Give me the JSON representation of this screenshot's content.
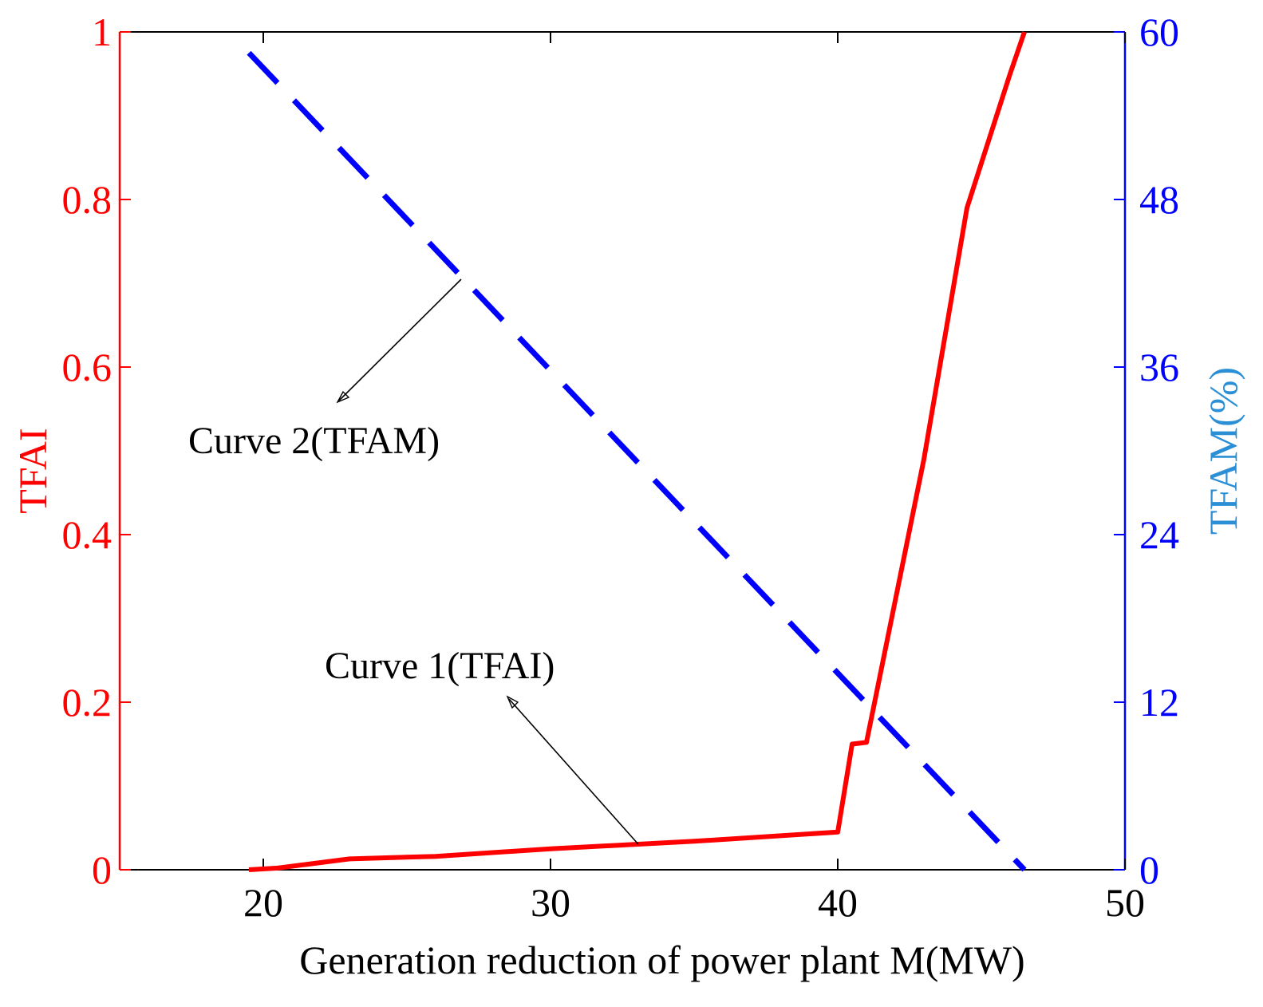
{
  "chart_data": {
    "type": "line",
    "title": "",
    "xlabel": "Generation reduction of power plant M(MW)",
    "ylabel_left": "TFAI",
    "ylabel_right": "TFAM(%)",
    "xlim": [
      15,
      50
    ],
    "ylim_left": [
      0,
      1
    ],
    "ylim_right": [
      0,
      60
    ],
    "xticks": [
      20,
      30,
      40,
      50
    ],
    "xtick_labels": [
      "20",
      "30",
      "40",
      "50"
    ],
    "yticks_left": [
      0,
      0.2,
      0.4,
      0.6,
      0.8,
      1
    ],
    "ytick_labels_left": [
      "0",
      "0.2",
      "0.4",
      "0.6",
      "0.8",
      "1"
    ],
    "yticks_right": [
      0,
      12,
      24,
      36,
      48,
      60
    ],
    "ytick_labels_right": [
      "0",
      "12",
      "24",
      "36",
      "48",
      "60"
    ],
    "grid": false,
    "colors": {
      "left_axis": "#ff0000",
      "right_axis": "#0000ff",
      "right_title": "#2b8fd6",
      "frame": "#000000"
    },
    "series": [
      {
        "name": "Curve 1(TFAI)",
        "axis": "left",
        "style": "solid",
        "color": "#ff0000",
        "x": [
          19.5,
          20.5,
          23,
          26,
          30,
          35,
          40,
          40.5,
          41,
          43,
          44.5,
          46,
          46.5
        ],
        "y": [
          0,
          0.002,
          0.013,
          0.016,
          0.025,
          0.034,
          0.045,
          0.15,
          0.152,
          0.49,
          0.79,
          0.95,
          1.0
        ]
      },
      {
        "name": "Curve 2(TFAM)",
        "axis": "right",
        "style": "dashed",
        "color": "#0000ff",
        "x": [
          19.5,
          46.5
        ],
        "y": [
          58.5,
          0
        ]
      }
    ],
    "annotations": [
      {
        "text": "Curve 2(TFAM)",
        "target_series": "Curve 2(TFAM)"
      },
      {
        "text": "Curve 1(TFAI)",
        "target_series": "Curve 1(TFAI)"
      }
    ]
  }
}
